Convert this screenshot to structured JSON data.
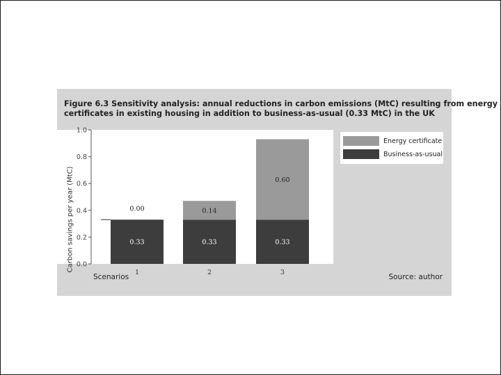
{
  "figure": {
    "title_line1": "Figure 6.3 Sensitivity analysis: annual reductions in carbon emissions (MtC) resulting from energy",
    "title_line2": "certificates in existing housing in addition to business-as-usual (0.33 MtC) in the UK",
    "source": "Source: author"
  },
  "chart_data": {
    "type": "bar",
    "stacked": true,
    "categories": [
      "1",
      "2",
      "3"
    ],
    "series": [
      {
        "name": "Business-as-usual",
        "values": [
          0.33,
          0.33,
          0.33
        ],
        "labels": [
          "0.33",
          "0.33",
          "0.33"
        ],
        "color": "#3d3d3d"
      },
      {
        "name": "Energy certificate",
        "values": [
          0.0,
          0.14,
          0.6
        ],
        "labels": [
          "0.00",
          "0.14",
          "0.60"
        ],
        "color": "#9a9a9a"
      }
    ],
    "xlabel": "Scenarios",
    "ylabel": "Carbon savings per year (MtC)",
    "ylim": [
      0,
      1.0
    ],
    "yticks": [
      0.0,
      0.2,
      0.4,
      0.6,
      0.8,
      1.0
    ],
    "ytick_labels": [
      "0.0",
      "0.2",
      "0.4",
      "0.6",
      "0.8",
      "1.0"
    ],
    "grid": false,
    "legend_position": "top-right",
    "legend_order": [
      "Energy certificate",
      "Business-as-usual"
    ]
  }
}
